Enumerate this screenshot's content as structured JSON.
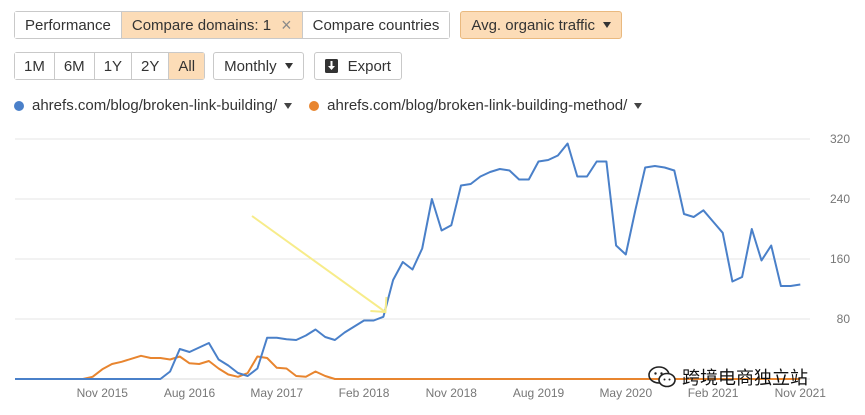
{
  "toolbar": {
    "tabs": [
      {
        "label": "Performance"
      },
      {
        "label": "Compare domains: 1",
        "close": "×"
      },
      {
        "label": "Compare countries"
      }
    ],
    "metric_label": "Avg. organic traffic",
    "periods": [
      "1M",
      "6M",
      "1Y",
      "2Y",
      "All"
    ],
    "granularity": "Monthly",
    "export_label": "Export"
  },
  "legend": [
    {
      "label": "ahrefs.com/blog/broken-link-building/",
      "color": "#4a80c9"
    },
    {
      "label": "ahrefs.com/blog/broken-link-building-method/",
      "color": "#e8852f"
    }
  ],
  "watermark": "跨境电商独立站",
  "chart_data": {
    "type": "line",
    "y_ticks": [
      80,
      160,
      240,
      320
    ],
    "ylim": [
      0,
      330
    ],
    "x_ticks": [
      "Nov 2015",
      "Aug 2016",
      "May 2017",
      "Feb 2018",
      "Nov 2018",
      "Aug 2019",
      "May 2020",
      "Feb 2021",
      "Nov 2021"
    ],
    "x_start": "2015-02",
    "x_end": "2021-12",
    "annotation": {
      "type": "arrow",
      "color": "#f7ec8a",
      "points_to": "2018-04"
    },
    "series": [
      {
        "name": "ahrefs.com/blog/broken-link-building/",
        "color": "#4a80c9",
        "points": [
          [
            "2015-02",
            0
          ],
          [
            "2015-11",
            0
          ],
          [
            "2016-05",
            0
          ],
          [
            "2016-06",
            10
          ],
          [
            "2016-07",
            40
          ],
          [
            "2016-08",
            36
          ],
          [
            "2016-09",
            42
          ],
          [
            "2016-10",
            48
          ],
          [
            "2016-11",
            26
          ],
          [
            "2016-12",
            18
          ],
          [
            "2017-01",
            8
          ],
          [
            "2017-02",
            4
          ],
          [
            "2017-03",
            14
          ],
          [
            "2017-04",
            55
          ],
          [
            "2017-05",
            55
          ],
          [
            "2017-06",
            53
          ],
          [
            "2017-07",
            52
          ],
          [
            "2017-08",
            58
          ],
          [
            "2017-09",
            66
          ],
          [
            "2017-10",
            56
          ],
          [
            "2017-11",
            52
          ],
          [
            "2017-12",
            62
          ],
          [
            "2018-01",
            70
          ],
          [
            "2018-02",
            78
          ],
          [
            "2018-03",
            78
          ],
          [
            "2018-04",
            83
          ],
          [
            "2018-05",
            132
          ],
          [
            "2018-06",
            156
          ],
          [
            "2018-07",
            146
          ],
          [
            "2018-08",
            174
          ],
          [
            "2018-09",
            240
          ],
          [
            "2018-10",
            198
          ],
          [
            "2018-11",
            205
          ],
          [
            "2018-12",
            258
          ],
          [
            "2019-01",
            260
          ],
          [
            "2019-02",
            270
          ],
          [
            "2019-03",
            276
          ],
          [
            "2019-04",
            280
          ],
          [
            "2019-05",
            278
          ],
          [
            "2019-06",
            266
          ],
          [
            "2019-07",
            266
          ],
          [
            "2019-08",
            290
          ],
          [
            "2019-09",
            292
          ],
          [
            "2019-10",
            298
          ],
          [
            "2019-11",
            314
          ],
          [
            "2019-12",
            270
          ],
          [
            "2020-01",
            270
          ],
          [
            "2020-02",
            290
          ],
          [
            "2020-03",
            290
          ],
          [
            "2020-04",
            178
          ],
          [
            "2020-05",
            166
          ],
          [
            "2020-06",
            226
          ],
          [
            "2020-07",
            282
          ],
          [
            "2020-08",
            284
          ],
          [
            "2020-09",
            282
          ],
          [
            "2020-10",
            278
          ],
          [
            "2020-11",
            220
          ],
          [
            "2020-12",
            216
          ],
          [
            "2021-01",
            225
          ],
          [
            "2021-02",
            210
          ],
          [
            "2021-03",
            195
          ],
          [
            "2021-04",
            130
          ],
          [
            "2021-05",
            136
          ],
          [
            "2021-06",
            200
          ],
          [
            "2021-07",
            158
          ],
          [
            "2021-08",
            178
          ],
          [
            "2021-09",
            124
          ],
          [
            "2021-10",
            124
          ],
          [
            "2021-11",
            126
          ]
        ]
      },
      {
        "name": "ahrefs.com/blog/broken-link-building-method/",
        "color": "#e8852f",
        "points": [
          [
            "2015-02",
            0
          ],
          [
            "2015-09",
            0
          ],
          [
            "2015-10",
            3
          ],
          [
            "2015-11",
            13
          ],
          [
            "2015-12",
            20
          ],
          [
            "2016-01",
            23
          ],
          [
            "2016-02",
            27
          ],
          [
            "2016-03",
            31
          ],
          [
            "2016-04",
            28
          ],
          [
            "2016-05",
            28
          ],
          [
            "2016-06",
            26
          ],
          [
            "2016-07",
            30
          ],
          [
            "2016-08",
            21
          ],
          [
            "2016-09",
            20
          ],
          [
            "2016-10",
            24
          ],
          [
            "2016-11",
            14
          ],
          [
            "2016-12",
            6
          ],
          [
            "2017-01",
            3
          ],
          [
            "2017-02",
            8
          ],
          [
            "2017-03",
            30
          ],
          [
            "2017-04",
            28
          ],
          [
            "2017-05",
            15
          ],
          [
            "2017-06",
            14
          ],
          [
            "2017-07",
            4
          ],
          [
            "2017-08",
            3
          ],
          [
            "2017-09",
            10
          ],
          [
            "2017-10",
            4
          ],
          [
            "2017-11",
            0
          ],
          [
            "2021-11",
            0
          ]
        ]
      }
    ]
  }
}
